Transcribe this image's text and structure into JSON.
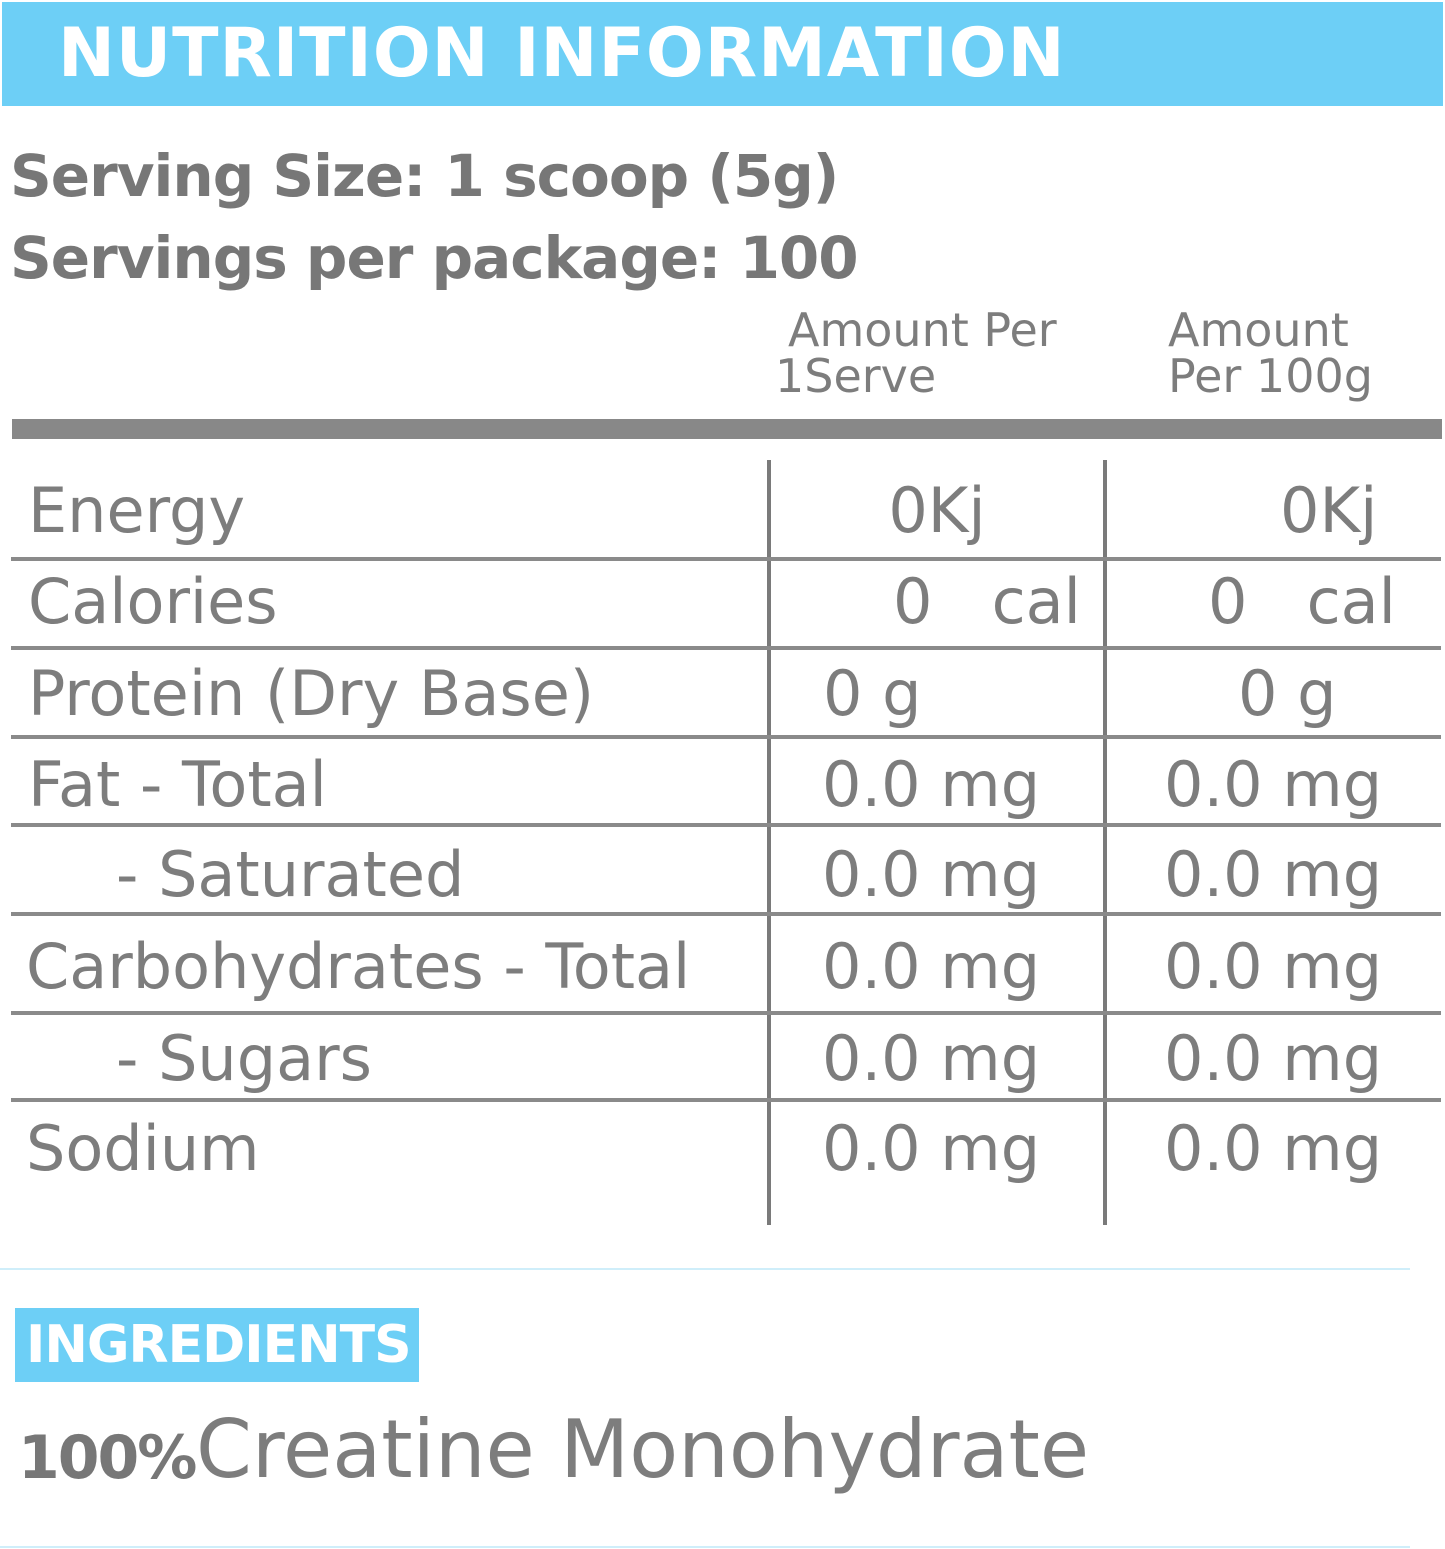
{
  "header": {
    "title": "NUTRITION INFORMATION"
  },
  "serving": {
    "size": "Serving Size: 1 scoop (5g)",
    "per_package": "Servings per package: 100"
  },
  "columns": {
    "per_serve_line1": "Amount  Per",
    "per_serve_line2": "1Serve",
    "per_100g_line1": "Amount",
    "per_100g_line2": "Per 100g"
  },
  "rows": [
    {
      "label": "Energy",
      "per_serve": "0Kj",
      "per_100g": "0Kj"
    },
    {
      "label": "Calories",
      "per_serve": "0   cal",
      "per_100g": "0   cal"
    },
    {
      "label": "Protein (Dry Base)",
      "per_serve": "0 g",
      "per_100g": "0 g"
    },
    {
      "label": "Fat - Total",
      "per_serve": "0.0 mg",
      "per_100g": "0.0 mg"
    },
    {
      "label": "- Saturated",
      "per_serve": "0.0 mg",
      "per_100g": "0.0 mg"
    },
    {
      "label": "Carbohydrates - Total",
      "per_serve": "0.0 mg",
      "per_100g": "0.0 mg"
    },
    {
      "label": "- Sugars",
      "per_serve": "0.0 mg",
      "per_100g": "0.0 mg"
    },
    {
      "label": "Sodium",
      "per_serve": "0.0 mg",
      "per_100g": "0.0 mg"
    }
  ],
  "ingredients": {
    "title": "INGREDIENTS",
    "percent": "100%",
    "name": "Creatine Monohydrate"
  },
  "colors": {
    "accent": "#6dcff6",
    "text": "#7d7d7d",
    "rule": "#888888"
  }
}
